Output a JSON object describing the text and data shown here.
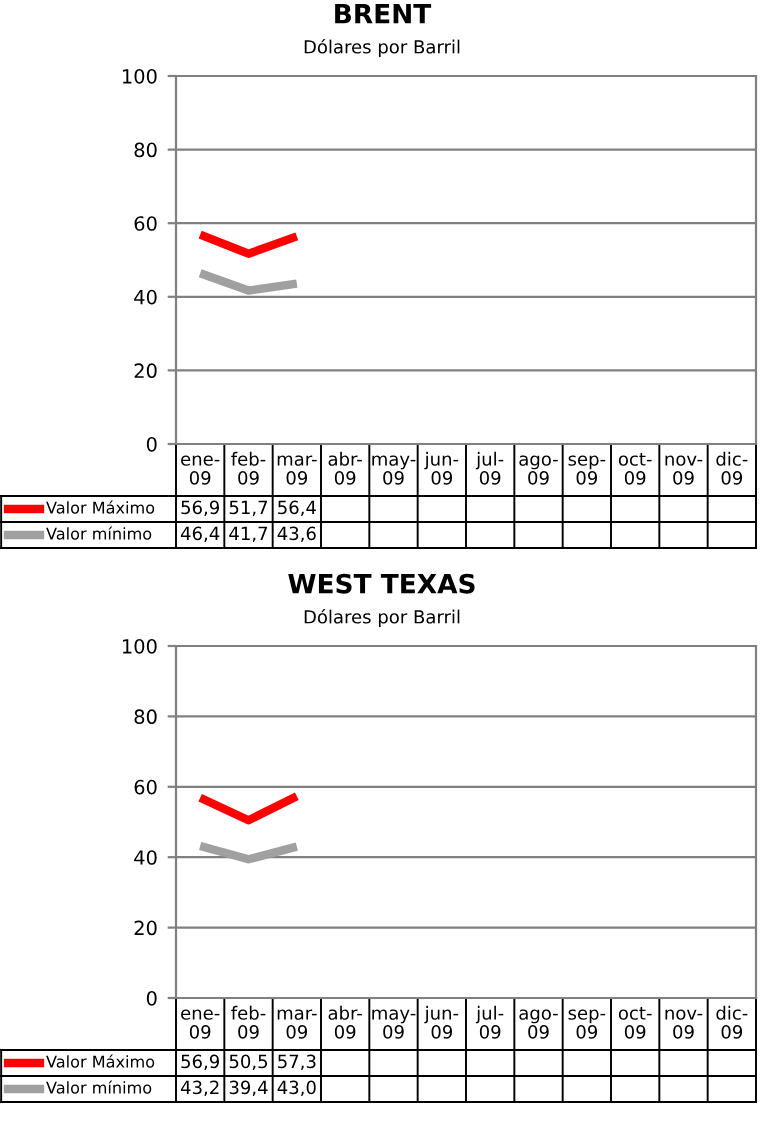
{
  "chart_data": [
    {
      "type": "line",
      "title": "BRENT",
      "subtitle": "Dólares por Barril",
      "categories": [
        "ene-\n09",
        "feb-\n09",
        "mar-\n09",
        "abr-\n09",
        "may-\n09",
        "jun-\n09",
        "jul-\n09",
        "ago-\n09",
        "sep-\n09",
        "oct-\n09",
        "nov-\n09",
        "dic-\n09"
      ],
      "series": [
        {
          "name": "Valor Máximo",
          "color": "#ff0000",
          "values": [
            56.9,
            51.7,
            56.4,
            null,
            null,
            null,
            null,
            null,
            null,
            null,
            null,
            null
          ],
          "value_labels": [
            "56,9",
            "51,7",
            "56,4",
            null,
            null,
            null,
            null,
            null,
            null,
            null,
            null,
            null
          ]
        },
        {
          "name": "Valor mínimo",
          "color": "#a0a0a0",
          "values": [
            46.4,
            41.7,
            43.6,
            null,
            null,
            null,
            null,
            null,
            null,
            null,
            null,
            null
          ],
          "value_labels": [
            "46,4",
            "41,7",
            "43,6",
            null,
            null,
            null,
            null,
            null,
            null,
            null,
            null,
            null
          ]
        }
      ],
      "ylim": [
        0,
        100
      ],
      "yticks": [
        0,
        20,
        40,
        60,
        80,
        100
      ],
      "grid": "y",
      "legend": "bottom",
      "marker": "none",
      "line_style": "solid"
    },
    {
      "type": "line",
      "title": "WEST TEXAS",
      "subtitle": "Dólares por Barril",
      "categories": [
        "ene-\n09",
        "feb-\n09",
        "mar-\n09",
        "abr-\n09",
        "may-\n09",
        "jun-\n09",
        "jul-\n09",
        "ago-\n09",
        "sep-\n09",
        "oct-\n09",
        "nov-\n09",
        "dic-\n09"
      ],
      "series": [
        {
          "name": "Valor Máximo",
          "color": "#ff0000",
          "values": [
            56.9,
            50.5,
            57.3,
            null,
            null,
            null,
            null,
            null,
            null,
            null,
            null,
            null
          ],
          "value_labels": [
            "56,9",
            "50,5",
            "57,3",
            null,
            null,
            null,
            null,
            null,
            null,
            null,
            null,
            null
          ]
        },
        {
          "name": "Valor mínimo",
          "color": "#a0a0a0",
          "values": [
            43.2,
            39.4,
            43.0,
            null,
            null,
            null,
            null,
            null,
            null,
            null,
            null,
            null
          ],
          "value_labels": [
            "43,2",
            "39,4",
            "43,0",
            null,
            null,
            null,
            null,
            null,
            null,
            null,
            null,
            null
          ]
        }
      ],
      "ylim": [
        0,
        100
      ],
      "yticks": [
        0,
        20,
        40,
        60,
        80,
        100
      ],
      "grid": "y",
      "legend": "bottom",
      "marker": "none",
      "line_style": "solid"
    }
  ]
}
